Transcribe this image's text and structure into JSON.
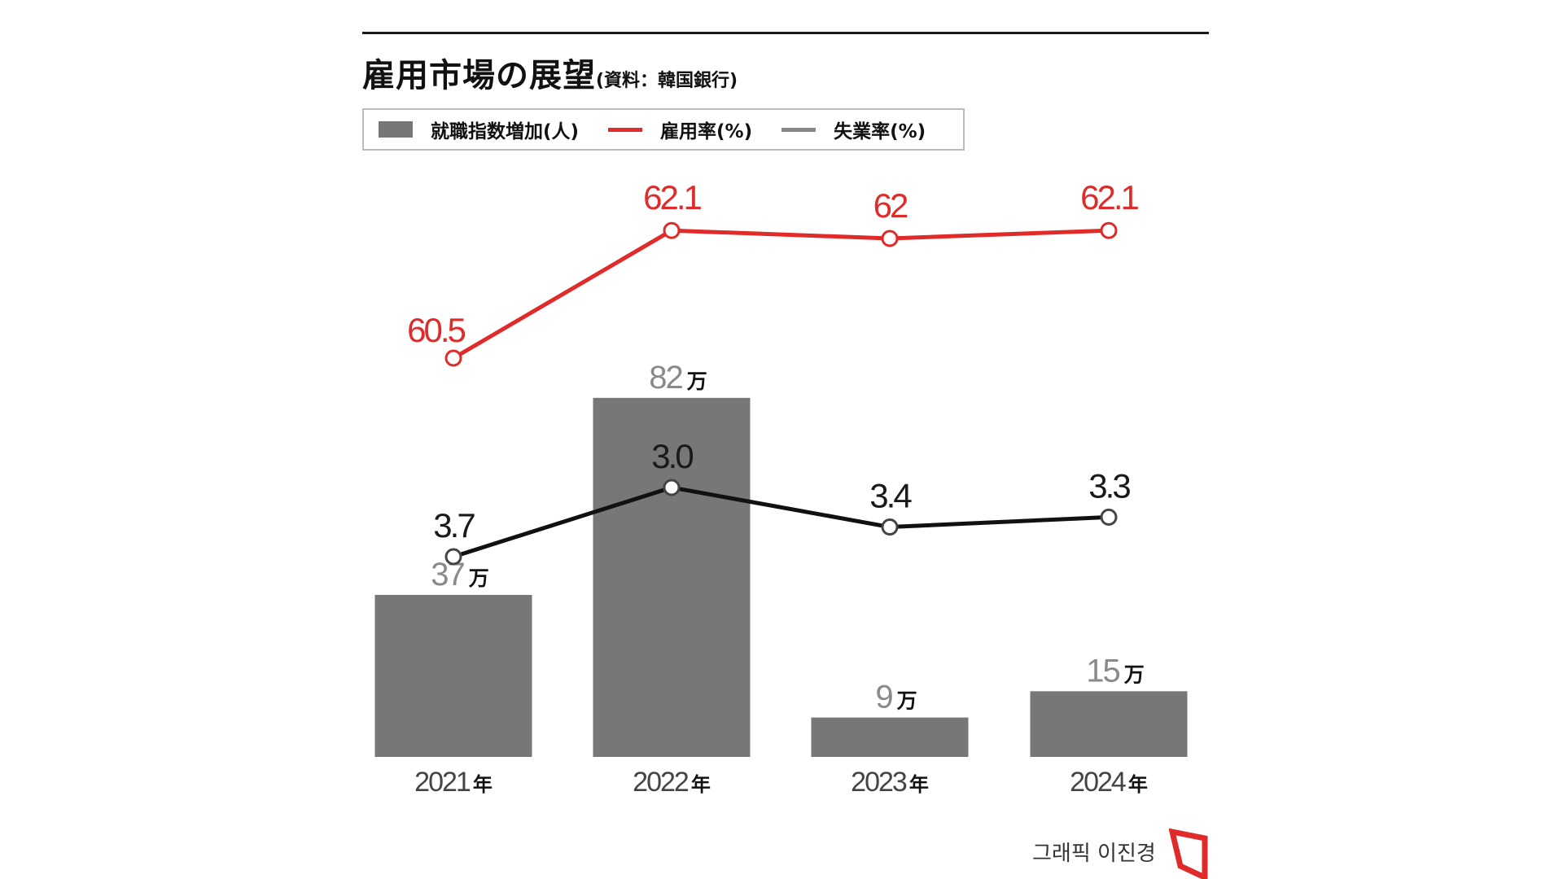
{
  "chart_data": {
    "type": "bar",
    "title": "雇用市場の展望",
    "source": "(資料：韓国銀行)",
    "categories": [
      "2021",
      "2022",
      "2023",
      "2024"
    ],
    "category_suffix": "年",
    "bar_suffix": "万",
    "series": [
      {
        "name": "就職指数増加(人)",
        "type": "bar",
        "color": "#777777",
        "values": [
          37,
          82,
          9,
          15
        ],
        "labels": [
          "37",
          "82",
          "9",
          "15"
        ]
      },
      {
        "name": "雇用率(%)",
        "type": "line",
        "color": "#e02b2b",
        "values": [
          60.5,
          62.1,
          62,
          62.1
        ],
        "labels": [
          "60.5",
          "62.1",
          "62",
          "62.1"
        ]
      },
      {
        "name": "失業率(%)",
        "type": "line",
        "color": "#111111",
        "values": [
          3.7,
          3.0,
          3.4,
          3.3
        ],
        "labels": [
          "3.7",
          "3.0",
          "3.4",
          "3.3"
        ]
      }
    ],
    "legend": "top-left",
    "grid": false
  },
  "credit": "그래픽 이진경",
  "colors": {
    "accent_red": "#e02b2b",
    "bar_gray": "#777777",
    "text_dark": "#111111",
    "label_gray": "#8a8a8a"
  }
}
